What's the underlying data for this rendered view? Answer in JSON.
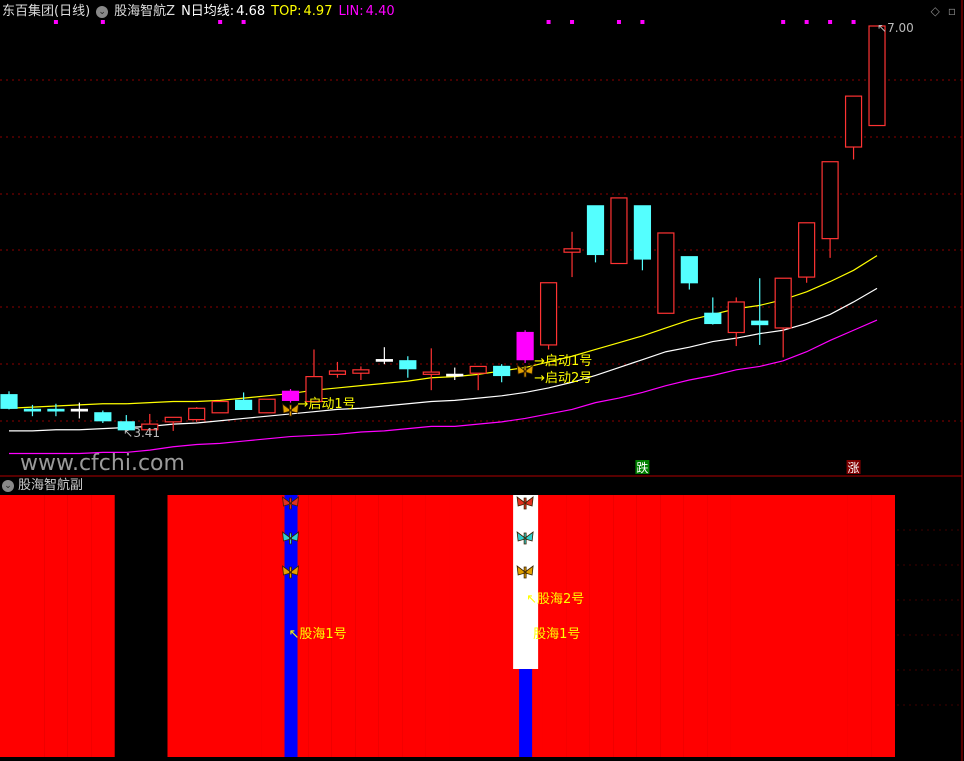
{
  "header": {
    "stock_name": "东百集团(日线)",
    "indicator_name": "股海智航Z",
    "ma_label": "N日均线:",
    "ma_value": "4.68",
    "top_label": "TOP:",
    "top_value": "4.97",
    "lin_label": "LIN:",
    "lin_value": "4.40"
  },
  "sub_pane": {
    "title": "股海智航副"
  },
  "watermark": "www.cfchi.com",
  "colors": {
    "up": "#ff3333",
    "down": "#54ffff",
    "signal_candle": "#ff00ff",
    "top_line": "#ffff00",
    "ma_line": "#ffffff",
    "lin_line": "#ff00ff",
    "sub_fill": "#ff0000",
    "sub_blue": "#0000ff",
    "grid": "#8b0000"
  },
  "annotations": {
    "low_label": "3.41",
    "high_label": "7.00",
    "start1": "启动1号",
    "start2": "启动2号",
    "fall_badge": "跌",
    "rise_badge": "涨",
    "sub_label1": "股海1号",
    "sub_label2": "股海2号",
    "sub_label3": "股海1号"
  },
  "chart_data": {
    "type": "candlestick",
    "ylim": [
      3.2,
      7.0
    ],
    "grid": true,
    "candles": [
      {
        "o": 3.74,
        "h": 3.77,
        "l": 3.61,
        "c": 3.62
      },
      {
        "o": 3.61,
        "h": 3.65,
        "l": 3.55,
        "c": 3.6
      },
      {
        "o": 3.61,
        "h": 3.66,
        "l": 3.55,
        "c": 3.61,
        "flat": "down"
      },
      {
        "o": 3.61,
        "h": 3.67,
        "l": 3.53,
        "c": 3.61,
        "flat": "neutral"
      },
      {
        "o": 3.58,
        "h": 3.6,
        "l": 3.49,
        "c": 3.51
      },
      {
        "o": 3.5,
        "h": 3.56,
        "l": 3.41,
        "c": 3.43
      },
      {
        "o": 3.43,
        "h": 3.57,
        "l": 3.41,
        "c": 3.48
      },
      {
        "o": 3.5,
        "h": 3.54,
        "l": 3.42,
        "c": 3.54
      },
      {
        "o": 3.52,
        "h": 3.63,
        "l": 3.5,
        "c": 3.62
      },
      {
        "o": 3.58,
        "h": 3.68,
        "l": 3.58,
        "c": 3.68
      },
      {
        "o": 3.69,
        "h": 3.76,
        "l": 3.61,
        "c": 3.61
      },
      {
        "o": 3.58,
        "h": 3.7,
        "l": 3.58,
        "c": 3.7
      },
      {
        "o": 3.69,
        "h": 3.79,
        "l": 3.67,
        "c": 3.77,
        "signal": true
      },
      {
        "o": 3.68,
        "h": 4.14,
        "l": 3.68,
        "c": 3.9
      },
      {
        "o": 3.92,
        "h": 4.03,
        "l": 3.89,
        "c": 3.95
      },
      {
        "o": 3.93,
        "h": 3.99,
        "l": 3.87,
        "c": 3.96
      },
      {
        "o": 4.05,
        "h": 4.16,
        "l": 4.01,
        "c": 4.05,
        "flat": "neutral"
      },
      {
        "o": 4.04,
        "h": 4.08,
        "l": 3.89,
        "c": 3.97
      },
      {
        "o": 3.92,
        "h": 4.15,
        "l": 3.78,
        "c": 3.94
      },
      {
        "o": 3.92,
        "h": 3.98,
        "l": 3.87,
        "c": 3.92,
        "flat": "neutral"
      },
      {
        "o": 3.93,
        "h": 3.99,
        "l": 3.78,
        "c": 3.99
      },
      {
        "o": 3.99,
        "h": 4.01,
        "l": 3.85,
        "c": 3.91
      },
      {
        "o": 4.05,
        "h": 4.31,
        "l": 4.02,
        "c": 4.29,
        "signal": true
      },
      {
        "o": 4.18,
        "h": 4.73,
        "l": 4.14,
        "c": 4.73
      },
      {
        "o": 5.0,
        "h": 5.18,
        "l": 4.78,
        "c": 5.03
      },
      {
        "o": 5.41,
        "h": 5.41,
        "l": 4.91,
        "c": 4.98
      },
      {
        "o": 4.9,
        "h": 5.48,
        "l": 4.9,
        "c": 5.48
      },
      {
        "o": 5.41,
        "h": 5.41,
        "l": 4.84,
        "c": 4.94
      },
      {
        "o": 4.46,
        "h": 5.17,
        "l": 4.46,
        "c": 5.17
      },
      {
        "o": 4.96,
        "h": 4.96,
        "l": 4.67,
        "c": 4.73
      },
      {
        "o": 4.46,
        "h": 4.6,
        "l": 4.36,
        "c": 4.37
      },
      {
        "o": 4.29,
        "h": 4.6,
        "l": 4.17,
        "c": 4.56
      },
      {
        "o": 4.39,
        "h": 4.77,
        "l": 4.18,
        "c": 4.36
      },
      {
        "o": 4.33,
        "h": 4.77,
        "l": 4.07,
        "c": 4.77
      },
      {
        "o": 4.78,
        "h": 5.26,
        "l": 4.73,
        "c": 5.26
      },
      {
        "o": 5.12,
        "h": 5.8,
        "l": 4.95,
        "c": 5.8
      },
      {
        "o": 5.93,
        "h": 6.38,
        "l": 5.82,
        "c": 6.38
      },
      {
        "o": 6.12,
        "h": 7.0,
        "l": 6.12,
        "c": 7.0
      }
    ],
    "series": [
      {
        "name": "TOP",
        "values": [
          3.62,
          3.63,
          3.64,
          3.65,
          3.66,
          3.66,
          3.67,
          3.68,
          3.68,
          3.69,
          3.71,
          3.73,
          3.75,
          3.78,
          3.8,
          3.82,
          3.84,
          3.86,
          3.89,
          3.9,
          3.92,
          3.95,
          3.98,
          4.03,
          4.08,
          4.14,
          4.2,
          4.26,
          4.33,
          4.4,
          4.45,
          4.5,
          4.53,
          4.58,
          4.65,
          4.74,
          4.84,
          4.97
        ]
      },
      {
        "name": "N日均线",
        "values": [
          3.42,
          3.42,
          3.43,
          3.43,
          3.44,
          3.45,
          3.46,
          3.48,
          3.49,
          3.51,
          3.53,
          3.55,
          3.57,
          3.59,
          3.61,
          3.62,
          3.64,
          3.66,
          3.68,
          3.69,
          3.71,
          3.73,
          3.76,
          3.8,
          3.85,
          3.91,
          3.98,
          4.05,
          4.12,
          4.16,
          4.21,
          4.24,
          4.28,
          4.31,
          4.37,
          4.45,
          4.56,
          4.68
        ]
      },
      {
        "name": "LIN",
        "values": [
          3.22,
          3.22,
          3.22,
          3.22,
          3.23,
          3.23,
          3.25,
          3.28,
          3.3,
          3.31,
          3.33,
          3.35,
          3.37,
          3.38,
          3.39,
          3.41,
          3.42,
          3.44,
          3.46,
          3.46,
          3.48,
          3.5,
          3.53,
          3.57,
          3.61,
          3.67,
          3.71,
          3.76,
          3.82,
          3.87,
          3.91,
          3.96,
          3.99,
          4.04,
          4.12,
          4.22,
          4.31,
          4.4
        ]
      }
    ],
    "top_markers": [
      3,
      5,
      10,
      11,
      24,
      25,
      27,
      28,
      34,
      35,
      36,
      37
    ],
    "start_signals": [
      13,
      23
    ],
    "fall_badge_at": 28,
    "rise_badge_at": 37,
    "sub_red_candles": [
      1,
      2,
      3,
      4,
      5,
      8,
      9,
      10,
      11,
      12,
      13,
      14,
      15,
      16,
      17,
      18,
      19,
      20,
      21,
      22,
      23,
      24,
      25,
      26,
      27,
      28,
      29,
      30,
      31,
      32,
      33,
      34,
      35,
      36,
      37,
      38
    ],
    "sub_blue_at": [
      13,
      23
    ],
    "sub_white_at": 23
  }
}
